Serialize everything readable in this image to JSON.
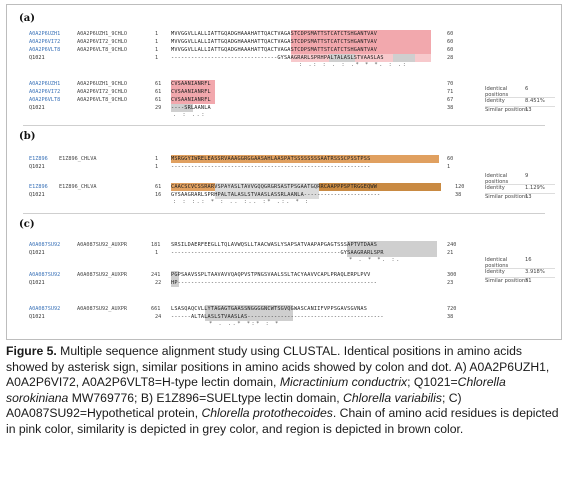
{
  "figure": {
    "panels": [
      {
        "label": "(a)",
        "blocks": [
          {
            "rows": [
              {
                "acc": "A0A2P6UZH1",
                "name": "A0A2P6UZH1_9CHLO",
                "start": "1",
                "seq": "MVVGGVLLALLIATTGQADGHAAAHATTQACTVAGASTCDPSMATTSTCATCTSHGANTVAV",
                "end": "60"
              },
              {
                "acc": "A0A2P6VI72",
                "name": "A0A2P6VI72_9CHLO",
                "start": "1",
                "seq": "MVVGGVLLALLIATTGQADGHAAAHATTQACTVAGASTCDPSMATTSTCATCTSHGANTVAV",
                "end": "60"
              },
              {
                "acc": "A0A2P6VLT8",
                "name": "A0A2P6VLT8_9CHLO",
                "start": "1",
                "seq": "MVVGGVLLALLIATTGQADGHAAAHATTQACTVAGASTCDPSMATTSTCATCTSHGANTVAV",
                "end": "60"
              },
              {
                "acc": "Q1021",
                "name": "",
                "start": "1",
                "seq": "--------------------------------GYSAAGRARLSPRHPALTALASLSTVAASLAS",
                "end": "28"
              }
            ],
            "consensus": ": .:   : . :     .* *  *.  :  .:"
          },
          {
            "rows": [
              {
                "acc": "A0A2P6UZH1",
                "name": "A0A2P6UZH1_9CHLO",
                "start": "61",
                "seq": "CVSAANIANRFL",
                "end": "70"
              },
              {
                "acc": "A0A2P6VI72",
                "name": "A0A2P6VI72_9CHLO",
                "start": "61",
                "seq": "CVSAANIANRFL",
                "end": "71"
              },
              {
                "acc": "A0A2P6VLT8",
                "name": "A0A2P6VLT8_9CHLO",
                "start": "61",
                "seq": "CVSAANIANRFL",
                "end": "67"
              },
              {
                "acc": "Q1021",
                "name": "",
                "start": "29",
                "seq": "----SRLAANLA",
                "end": "38"
              }
            ],
            "consensus": ". : ..:",
            "stats": [
              {
                "label": "Identical",
                "label2": "positions",
                "value": "6"
              },
              {
                "label": "Identity",
                "label2": "",
                "value": "8.451%"
              },
              {
                "label": "Similar positions",
                "label2": "",
                "value": "13"
              }
            ]
          }
        ]
      },
      {
        "label": "(b)",
        "blocks": [
          {
            "rows": [
              {
                "acc": "E1Z896",
                "name": "E1Z896_CHLVA",
                "start": "1",
                "seq": "MSRGGYIWRELEASSRVAAAGGRGGAASAHLAASPATSSSSSSSSAATRSSSCPSSTPSS",
                "end": "60"
              },
              {
                "acc": "Q1021",
                "name": "",
                "start": "1",
                "seq": "------------------------------------------------------------",
                "end": "1"
              }
            ],
            "consensus": ""
          },
          {
            "rows": [
              {
                "acc": "E1Z896",
                "name": "E1Z896_CHLVA",
                "start": "61",
                "seq": "CAACSCVCSSRARVSPAYASLTAVVGQQGRGRSASTPSGAATGQRRCAAPPPSPTRGGEQWW",
                "end": "120"
              },
              {
                "acc": "Q1021",
                "name": "",
                "start": "16",
                "seq": "GYSAAGRARLSPRHPALTALASLSTVAASLASSRLAANLA-----------------------",
                "end": "38"
              }
            ],
            "consensus": ":  :  :.: * :  ..  :.. :*  .:.  * :",
            "stats": [
              {
                "label": "Identical",
                "label2": "positions",
                "value": "9"
              },
              {
                "label": "Identity",
                "label2": "",
                "value": "1.129%"
              },
              {
                "label": "Similar positions",
                "label2": "",
                "value": "13"
              }
            ]
          }
        ]
      },
      {
        "label": "(c)",
        "blocks": [
          {
            "rows": [
              {
                "acc": "A0A087SU92",
                "name": "A0A087SU92_AUXPR",
                "start": "181",
                "seq": "SRSILDAERFEEGLLTQLAVWQSLLTAACWASLYSAPSATVAAPAPGAGTSSSAPTVTDAAS",
                "end": "240"
              },
              {
                "acc": "Q1021",
                "name": "",
                "start": "1",
                "seq": "---------------------------------------------------GYSAAGRARLSPR",
                "end": "21"
              }
            ],
            "consensus": "* . *  *.   :."
          },
          {
            "rows": [
              {
                "acc": "A0A087SU92",
                "name": "A0A087SU92_AUXPR",
                "start": "241",
                "seq": "PGPSAAVSSPLTAAVAVVQAQPVSTPNGSVAALSSLTACYAAVVCAPLPRAQLERPLPVV",
                "end": "300"
              },
              {
                "acc": "Q1021",
                "name": "",
                "start": "22",
                "seq": "HP------------------------------------------------------------",
                "end": "23"
              }
            ],
            "consensus": "",
            "stats": [
              {
                "label": "Identical",
                "label2": "positions",
                "value": "16"
              },
              {
                "label": "Identity",
                "label2": "",
                "value": "3.918%"
              },
              {
                "label": "Similar positions",
                "label2": "",
                "value": "31"
              }
            ]
          },
          {
            "rows": [
              {
                "acc": "A0A087SU92",
                "name": "A0A087SU92_AUXPR",
                "start": "661",
                "seq": "LSASQAQCVLLYTAGAGTGAASSNGGGGNCWTSGVQGWASCANIIFVPPSGAVSGVNAS",
                "end": "720"
              },
              {
                "acc": "Q1021",
                "name": "",
                "start": "24",
                "seq": "------ALTALASLSTVAASLAS-----------------------------------------",
                "end": "38"
              }
            ],
            "consensus": "*  .  ..* *:* :  *"
          }
        ]
      }
    ]
  },
  "caption": {
    "fig_label": "Figure 5.",
    "text_1": " Multiple sequence alignment study using CLUSTAL. Identical positions in amino acids showed by asterisk sign, similar positions in amino acids showed by colon and dot. A) A0A2P6UZH1, A0A2P6VI72, A0A2P6VLT8=H-type lectin domain, ",
    "species_a": "Micractinium conductrix",
    "text_2": "; Q1021=",
    "species_q": "Chlorella sorokiniana",
    "text_3": " MW769776; B) E1Z896=SUELtype lectin domain, ",
    "species_b": "Chlorella variabilis",
    "text_4": "; C) A0A087SU92=Hypothetical protein, ",
    "species_c": "Chlorella protothecoides",
    "text_5": ". Chain of amino acid residues is depicted in pink color, similarity is depicted in grey color, and region is depicted in brown color."
  }
}
